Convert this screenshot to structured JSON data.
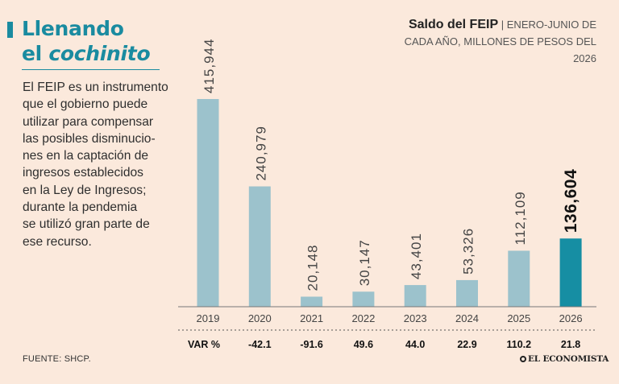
{
  "headline": {
    "line1": "Llenando",
    "line2_plain": "el ",
    "line2_italic": "cochinito"
  },
  "description": [
    "El FEIP es un instrumento",
    "que el gobierno puede",
    "utilizar para compensar",
    "las posibles disminucio-",
    "nes en la captación de",
    "ingresos establecidos",
    "en la Ley de Ingresos;",
    "durante la pendemia",
    "se utilizó gran parte de",
    "ese recurso."
  ],
  "chart_title": {
    "bold": "Saldo del FEIP",
    "separator": "|",
    "rest": "ENERO-JUNIO DE CADA AÑO, MILLONES DE PESOS DEL 2026"
  },
  "source": "FUENTE: SHCP.",
  "logo": "EL ECONOMISTA",
  "colors": {
    "accent": "#1a8ba0",
    "bar": "#9cc2cc",
    "highlight_bar": "#168ea3",
    "background": "#fbe9dc"
  },
  "chart_data": {
    "type": "bar",
    "categories": [
      "2019",
      "2020",
      "2021",
      "2022",
      "2023",
      "2024",
      "2025",
      "2026"
    ],
    "values": [
      415944,
      240979,
      20148,
      30147,
      43401,
      53326,
      112109,
      136604
    ],
    "value_labels": [
      "415,944",
      "240,979",
      "20,148",
      "30,147",
      "43,401",
      "53,326",
      "112,109",
      "136,604"
    ],
    "highlight_index": 7,
    "var_label": "VAR %",
    "var_values": [
      "",
      "-42.1",
      "-91.6",
      "49.6",
      "44.0",
      "22.9",
      "110.2",
      "21.8"
    ],
    "ylim": [
      0,
      415944
    ]
  }
}
